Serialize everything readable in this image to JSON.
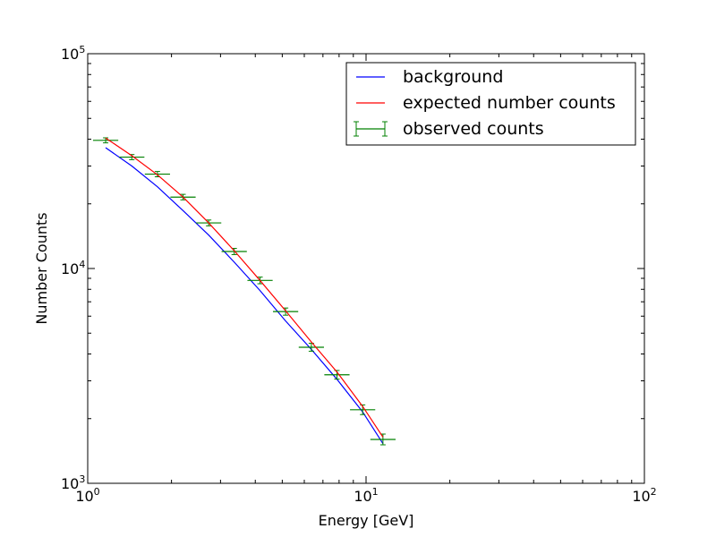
{
  "chart_data": {
    "type": "line",
    "xlabel": "Energy [GeV]",
    "ylabel": "Number Counts",
    "xscale": "log",
    "yscale": "log",
    "xlim": [
      1,
      100
    ],
    "ylim": [
      1000,
      100000
    ],
    "grid": false,
    "legend_position": "top-right",
    "x_ticks": [
      {
        "value": 1,
        "base": "10",
        "exp": "0"
      },
      {
        "value": 10,
        "base": "10",
        "exp": "1"
      },
      {
        "value": 100,
        "base": "10",
        "exp": "2"
      }
    ],
    "y_ticks": [
      {
        "value": 1000,
        "base": "10",
        "exp": "3"
      },
      {
        "value": 10000,
        "base": "10",
        "exp": "4"
      },
      {
        "value": 100000,
        "base": "10",
        "exp": "5"
      }
    ],
    "series": [
      {
        "name": "background",
        "kind": "line",
        "color": "#0000ff",
        "x": [
          1.16,
          1.44,
          1.78,
          2.2,
          2.72,
          3.36,
          4.16,
          5.14,
          6.36,
          7.86,
          9.72,
          11.5
        ],
        "y": [
          36500,
          30000,
          24000,
          18600,
          14300,
          10700,
          7900,
          5700,
          4200,
          3050,
          2150,
          1530
        ]
      },
      {
        "name": "expected number counts",
        "kind": "line",
        "color": "#ff0000",
        "x": [
          1.16,
          1.44,
          1.78,
          2.2,
          2.72,
          3.36,
          4.16,
          5.14,
          6.36,
          7.86,
          9.72,
          11.5
        ],
        "y": [
          40500,
          33500,
          27300,
          21500,
          16300,
          12100,
          8800,
          6350,
          4550,
          3300,
          2280,
          1640
        ]
      },
      {
        "name": "observed counts",
        "kind": "errorbar",
        "color": "#008000",
        "x": [
          1.16,
          1.44,
          1.78,
          2.2,
          2.72,
          3.36,
          4.16,
          5.14,
          6.36,
          7.86,
          9.72,
          11.5
        ],
        "y": [
          39500,
          33000,
          27500,
          21500,
          16300,
          12000,
          8800,
          6300,
          4300,
          3200,
          2200,
          1600
        ]
      }
    ]
  }
}
